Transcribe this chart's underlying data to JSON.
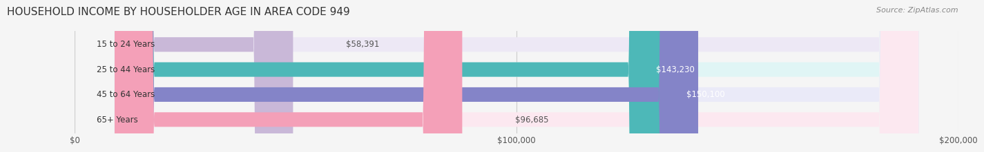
{
  "title": "HOUSEHOLD INCOME BY HOUSEHOLDER AGE IN AREA CODE 949",
  "source": "Source: ZipAtlas.com",
  "categories": [
    "15 to 24 Years",
    "25 to 44 Years",
    "45 to 64 Years",
    "65+ Years"
  ],
  "values": [
    58391,
    143230,
    150100,
    96685
  ],
  "value_labels": [
    "$58,391",
    "$143,230",
    "$150,100",
    "$96,685"
  ],
  "bar_colors": [
    "#c9b8d8",
    "#4db8b8",
    "#8484c8",
    "#f4a0b8"
  ],
  "bg_colors": [
    "#ede8f5",
    "#e0f5f5",
    "#eaeaf8",
    "#fce8f0"
  ],
  "xmax": 200000,
  "xticks": [
    0,
    100000,
    200000
  ],
  "xtick_labels": [
    "$0",
    "$100,000",
    "$200,000"
  ],
  "bar_height": 0.58,
  "title_fontsize": 11,
  "label_fontsize": 8.5,
  "value_fontsize": 8.5,
  "source_fontsize": 8,
  "bg_color": "#f5f5f5"
}
